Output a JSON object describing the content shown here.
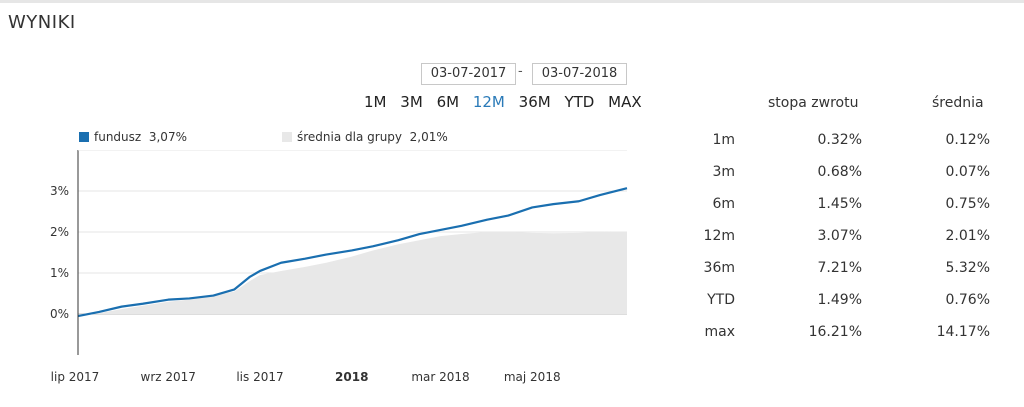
{
  "header": {
    "title": "WYNIKI"
  },
  "date_range": {
    "from": "03-07-2017",
    "separator": "-",
    "to": "03-07-2018"
  },
  "periods": [
    "1M",
    "3M",
    "6M",
    "12M",
    "36M",
    "YTD",
    "MAX"
  ],
  "active_period": "12M",
  "legend": {
    "fund_label": "fundusz",
    "fund_value": "3,07%",
    "group_label": "średnia dla grupy",
    "group_value": "2,01%"
  },
  "colors": {
    "fund": "#1a6fb0",
    "group_area": "#e8e8e8",
    "active": "#2a7ab8"
  },
  "returns_table": {
    "col1": "stopa zwrotu",
    "col2": "średnia",
    "rows": [
      {
        "period": "1m",
        "rate": "0.32%",
        "avg": "0.12%"
      },
      {
        "period": "3m",
        "rate": "0.68%",
        "avg": "0.07%"
      },
      {
        "period": "6m",
        "rate": "1.45%",
        "avg": "0.75%"
      },
      {
        "period": "12m",
        "rate": "3.07%",
        "avg": "2.01%"
      },
      {
        "period": "36m",
        "rate": "7.21%",
        "avg": "5.32%"
      },
      {
        "period": "YTD",
        "rate": "1.49%",
        "avg": "0.76%"
      },
      {
        "period": "max",
        "rate": "16.21%",
        "avg": "14.17%"
      }
    ]
  },
  "chart_data": {
    "type": "area",
    "x_ticks": [
      {
        "label": "lip 2017",
        "x": "2017-07-01",
        "bold": false
      },
      {
        "label": "wrz 2017",
        "x": "2017-09-01",
        "bold": false
      },
      {
        "label": "lis 2017",
        "x": "2017-11-01",
        "bold": false
      },
      {
        "label": "2018",
        "x": "2018-01-01",
        "bold": true
      },
      {
        "label": "mar 2018",
        "x": "2018-03-01",
        "bold": false
      },
      {
        "label": "maj 2018",
        "x": "2018-05-01",
        "bold": false
      }
    ],
    "y_ticks": [
      0,
      1,
      2,
      3
    ],
    "y_tick_labels": [
      "0%",
      "1%",
      "2%",
      "3%"
    ],
    "xlim": [
      "2017-07-03",
      "2018-07-03"
    ],
    "ylim": [
      -1,
      4
    ],
    "series": [
      {
        "name": "fundusz 3,07%",
        "type": "line",
        "x": [
          "2017-07-03",
          "2017-07-17",
          "2017-08-01",
          "2017-08-15",
          "2017-09-01",
          "2017-09-15",
          "2017-10-01",
          "2017-10-15",
          "2017-10-25",
          "2017-11-01",
          "2017-11-15",
          "2017-12-01",
          "2017-12-15",
          "2018-01-01",
          "2018-01-15",
          "2018-02-01",
          "2018-02-15",
          "2018-03-01",
          "2018-03-15",
          "2018-04-01",
          "2018-04-15",
          "2018-05-01",
          "2018-05-15",
          "2018-06-01",
          "2018-06-15",
          "2018-07-03"
        ],
        "values": [
          -0.05,
          0.05,
          0.18,
          0.25,
          0.35,
          0.38,
          0.45,
          0.6,
          0.9,
          1.05,
          1.25,
          1.35,
          1.45,
          1.55,
          1.65,
          1.8,
          1.95,
          2.05,
          2.15,
          2.3,
          2.4,
          2.6,
          2.68,
          2.75,
          2.9,
          3.07
        ]
      },
      {
        "name": "średnia dla grupy 2,01%",
        "type": "area",
        "x": [
          "2017-07-03",
          "2017-07-17",
          "2017-08-01",
          "2017-08-15",
          "2017-09-01",
          "2017-09-15",
          "2017-10-01",
          "2017-10-15",
          "2017-10-25",
          "2017-11-01",
          "2017-11-15",
          "2017-12-01",
          "2017-12-15",
          "2018-01-01",
          "2018-01-15",
          "2018-02-01",
          "2018-02-15",
          "2018-03-01",
          "2018-03-15",
          "2018-04-01",
          "2018-04-15",
          "2018-05-01",
          "2018-05-15",
          "2018-06-01",
          "2018-06-15",
          "2018-07-03"
        ],
        "values": [
          -0.05,
          0.02,
          0.12,
          0.2,
          0.3,
          0.35,
          0.45,
          0.55,
          0.8,
          0.95,
          1.05,
          1.15,
          1.25,
          1.4,
          1.55,
          1.7,
          1.8,
          1.9,
          1.95,
          2.0,
          2.0,
          1.98,
          1.97,
          1.98,
          2.0,
          2.01
        ]
      }
    ],
    "grid": true,
    "legend_position": "top"
  }
}
